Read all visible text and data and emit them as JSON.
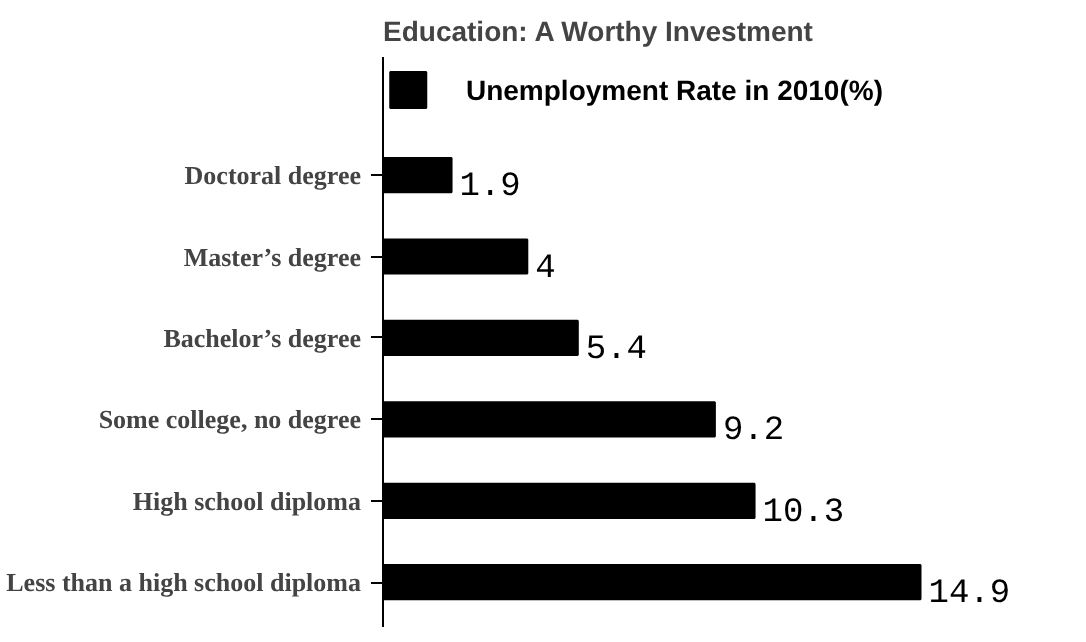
{
  "chart_data": {
    "type": "bar",
    "orientation": "horizontal",
    "title": "Education: A Worthy Investment",
    "categories": [
      "Doctoral degree",
      "Master’s degree",
      "Bachelor’s degree",
      "Some college, no degree",
      "High school diploma",
      "Less than a high school diploma"
    ],
    "series": [
      {
        "name": "Unemployment Rate in 2010(%)",
        "color": "#000000",
        "values": [
          1.9,
          4,
          5.4,
          9.2,
          10.3,
          14.9
        ]
      }
    ],
    "data_labels": true,
    "legend": "top"
  }
}
